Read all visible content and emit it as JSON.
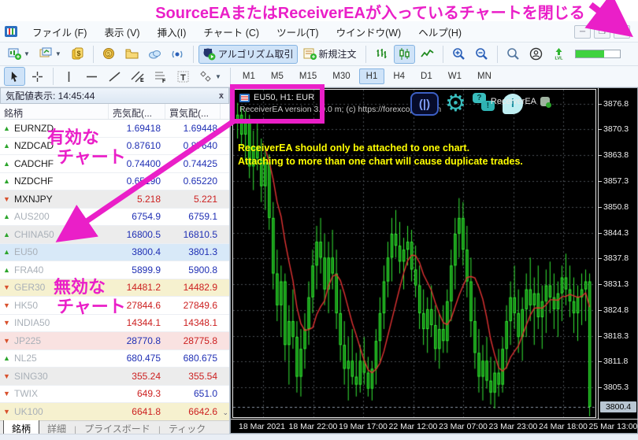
{
  "annotations": {
    "color": "#ea1fc8",
    "top_text": "SourceEAまたはReceiverEAが入っているチャートを閉じる",
    "valid_chart": [
      "有効な",
      "チャート"
    ],
    "invalid_chart": [
      "無効な",
      "チャート"
    ]
  },
  "menu": {
    "items": [
      "ファイル (F)",
      "表示 (V)",
      "挿入(I)",
      "チャート (C)",
      "ツール(T)",
      "ウインドウ(W)",
      "ヘルプ(H)"
    ],
    "window_controls": [
      "minimize",
      "restore",
      "close"
    ]
  },
  "toolbar1": {
    "items": [
      {
        "name": "new-chart-button",
        "icon": "new-chart",
        "dropdown": true
      },
      {
        "name": "profiles-button",
        "icon": "profiles",
        "dropdown": true
      },
      {
        "name": "market-watch-toggle",
        "icon": "dollar"
      },
      {
        "type": "sep"
      },
      {
        "name": "history-center-button",
        "icon": "coins"
      },
      {
        "name": "data-folder-button",
        "icon": "folder"
      },
      {
        "name": "cloud-button",
        "icon": "cloud"
      },
      {
        "name": "signals-button",
        "icon": "signal"
      },
      {
        "type": "sep"
      },
      {
        "name": "algo-trading-button",
        "icon": "algo",
        "label": "アルゴリズム取引",
        "active": true
      },
      {
        "name": "new-order-button",
        "icon": "order",
        "label": "新規注文"
      },
      {
        "type": "sep"
      },
      {
        "name": "bar-chart-type-button",
        "icon": "bars"
      },
      {
        "name": "candle-chart-type-button",
        "icon": "candles",
        "active": true
      },
      {
        "name": "line-chart-type-button",
        "icon": "linechart"
      },
      {
        "type": "sep"
      },
      {
        "name": "zoom-in-button",
        "icon": "zoom-in"
      },
      {
        "name": "zoom-out-button",
        "icon": "zoom-out"
      },
      {
        "type": "sep"
      },
      {
        "name": "search-button",
        "icon": "search"
      },
      {
        "name": "account-button",
        "icon": "user"
      },
      {
        "name": "levels-button",
        "icon": "lvl"
      },
      {
        "name": "connection-progress",
        "type": "progress",
        "value": 65
      }
    ]
  },
  "toolbar2": {
    "items": [
      {
        "name": "cursor-tool",
        "icon": "cursor",
        "active": true
      },
      {
        "name": "crosshair-tool",
        "icon": "crosshair"
      },
      {
        "type": "sep"
      },
      {
        "name": "vline-tool",
        "icon": "vline"
      },
      {
        "name": "hline-tool",
        "icon": "hline"
      },
      {
        "name": "trendline-tool",
        "icon": "trend"
      },
      {
        "name": "channel-tool",
        "icon": "channel"
      },
      {
        "name": "fibo-tool",
        "icon": "fibo"
      },
      {
        "name": "text-tool",
        "icon": "text"
      },
      {
        "name": "shapes-tool",
        "icon": "shapes",
        "dropdown": true
      }
    ],
    "timeframes": [
      "M1",
      "M5",
      "M15",
      "M30",
      "H1",
      "H4",
      "D1",
      "W1",
      "MN"
    ],
    "active_timeframe": "H1"
  },
  "market_watch": {
    "title": "気配値表示: 14:45:44",
    "columns": [
      "銘柄",
      "売気配(...",
      "買気配(..."
    ],
    "rows": [
      {
        "symbol": "EURNZD",
        "dir": "up",
        "bid": "1.69418",
        "ask": "1.69448",
        "bg": "white",
        "bidc": "blue",
        "askc": "blue",
        "muted": false
      },
      {
        "symbol": "NZDCAD",
        "dir": "up",
        "bid": "0.87610",
        "ask": "0.87640",
        "bg": "white",
        "bidc": "blue",
        "askc": "blue",
        "muted": false
      },
      {
        "symbol": "CADCHF",
        "dir": "up",
        "bid": "0.74400",
        "ask": "0.74425",
        "bg": "white",
        "bidc": "blue",
        "askc": "blue",
        "muted": false
      },
      {
        "symbol": "NZDCHF",
        "dir": "up",
        "bid": "0.65190",
        "ask": "0.65220",
        "bg": "white",
        "bidc": "blue",
        "askc": "blue",
        "muted": false
      },
      {
        "symbol": "MXNJPY",
        "dir": "down",
        "bid": "5.218",
        "ask": "5.221",
        "bg": "grey",
        "bidc": "red",
        "askc": "red",
        "muted": false
      },
      {
        "symbol": "AUS200",
        "dir": "up",
        "bid": "6754.9",
        "ask": "6759.1",
        "bg": "white",
        "bidc": "blue",
        "askc": "blue",
        "muted": true
      },
      {
        "symbol": "CHINA50",
        "dir": "up",
        "bid": "16800.5",
        "ask": "16810.5",
        "bg": "grey",
        "bidc": "blue",
        "askc": "blue",
        "muted": true
      },
      {
        "symbol": "EU50",
        "dir": "up",
        "bid": "3800.4",
        "ask": "3801.3",
        "bg": "blue",
        "bidc": "blue",
        "askc": "blue",
        "muted": true
      },
      {
        "symbol": "FRA40",
        "dir": "up",
        "bid": "5899.9",
        "ask": "5900.8",
        "bg": "white",
        "bidc": "blue",
        "askc": "blue",
        "muted": true
      },
      {
        "symbol": "GER30",
        "dir": "down",
        "bid": "14481.2",
        "ask": "14482.9",
        "bg": "yellow",
        "bidc": "red",
        "askc": "red",
        "muted": true
      },
      {
        "symbol": "HK50",
        "dir": "down",
        "bid": "27844.6",
        "ask": "27849.6",
        "bg": "white",
        "bidc": "red",
        "askc": "red",
        "muted": true
      },
      {
        "symbol": "INDIA50",
        "dir": "down",
        "bid": "14344.1",
        "ask": "14348.1",
        "bg": "white",
        "bidc": "red",
        "askc": "red",
        "muted": true
      },
      {
        "symbol": "JP225",
        "dir": "down",
        "bid": "28770.8",
        "ask": "28775.8",
        "bg": "pink",
        "bidc": "blue",
        "askc": "red",
        "muted": true
      },
      {
        "symbol": "NL25",
        "dir": "up",
        "bid": "680.475",
        "ask": "680.675",
        "bg": "white",
        "bidc": "blue",
        "askc": "blue",
        "muted": true
      },
      {
        "symbol": "SING30",
        "dir": "down",
        "bid": "355.24",
        "ask": "355.54",
        "bg": "grey",
        "bidc": "red",
        "askc": "red",
        "muted": true
      },
      {
        "symbol": "TWIX",
        "dir": "down",
        "bid": "649.3",
        "ask": "651.0",
        "bg": "white",
        "bidc": "red",
        "askc": "blue",
        "muted": true
      },
      {
        "symbol": "UK100",
        "dir": "down",
        "bid": "6641.8",
        "ask": "6642.6",
        "bg": "yellow",
        "bidc": "red",
        "askc": "red",
        "muted": true
      }
    ],
    "tabs": [
      {
        "label": "銘柄",
        "active": true
      },
      {
        "label": "詳細",
        "active": false
      },
      {
        "label": "プライスボード",
        "active": false
      },
      {
        "label": "ティック",
        "active": false
      }
    ]
  },
  "chart": {
    "title_line": "EU50, H1: EUR",
    "version_line": "ReceiverEA version 3.0.0 m; (c) https://forexcopier.com",
    "ea_name": "ReceiverEA",
    "warning_line1": "ReceiverEA should only be attached to one chart.",
    "warning_line2": "Attaching to more than one chart will cause duplicate trades."
  },
  "chart_data": {
    "type": "candlestick",
    "symbol": "EU50",
    "timeframe": "H1",
    "ylim": [
      3797.8,
      3880.3
    ],
    "current_price": 3800.4,
    "current_price_label": "3800.4",
    "price_ticks": [
      3876.8,
      3870.3,
      3863.8,
      3857.3,
      3850.8,
      3844.3,
      3837.8,
      3831.3,
      3824.8,
      3818.3,
      3811.8,
      3805.3
    ],
    "x_labels": [
      "18 Mar 2021",
      "18 Mar 22:00",
      "19 Mar 17:00",
      "22 Mar 12:00",
      "23 Mar 07:00",
      "23 Mar 23:00",
      "24 Mar 18:00",
      "25 Mar 13:00"
    ],
    "grid": true,
    "ma_period": 8,
    "colors": {
      "background": "#000000",
      "candle": "#35e835",
      "candle_fill": "#0e7a0e",
      "ma": "#e23333",
      "grid": "#4a4f55",
      "current_line": "#8a97a4"
    },
    "candles": [
      [
        3872,
        3877,
        3868,
        3874
      ],
      [
        3874,
        3876,
        3866,
        3869
      ],
      [
        3869,
        3875,
        3862,
        3872
      ],
      [
        3872,
        3874,
        3858,
        3861
      ],
      [
        3861,
        3870,
        3855,
        3866
      ],
      [
        3866,
        3872,
        3860,
        3863
      ],
      [
        3863,
        3868,
        3852,
        3856
      ],
      [
        3856,
        3866,
        3850,
        3862
      ],
      [
        3862,
        3864,
        3845,
        3848
      ],
      [
        3848,
        3852,
        3830,
        3834
      ],
      [
        3834,
        3840,
        3822,
        3826
      ],
      [
        3826,
        3836,
        3818,
        3832
      ],
      [
        3832,
        3834,
        3812,
        3816
      ],
      [
        3816,
        3826,
        3806,
        3822
      ],
      [
        3822,
        3830,
        3815,
        3818
      ],
      [
        3818,
        3822,
        3804,
        3808
      ],
      [
        3808,
        3820,
        3803,
        3815
      ],
      [
        3815,
        3824,
        3810,
        3820
      ],
      [
        3820,
        3832,
        3816,
        3828
      ],
      [
        3828,
        3840,
        3824,
        3836
      ],
      [
        3836,
        3846,
        3830,
        3842
      ],
      [
        3842,
        3848,
        3834,
        3838
      ],
      [
        3838,
        3844,
        3826,
        3830
      ],
      [
        3830,
        3842,
        3824,
        3838
      ],
      [
        3838,
        3845,
        3830,
        3834
      ],
      [
        3834,
        3840,
        3820,
        3824
      ],
      [
        3824,
        3830,
        3812,
        3816
      ],
      [
        3816,
        3822,
        3806,
        3810
      ],
      [
        3810,
        3818,
        3802,
        3812
      ],
      [
        3812,
        3820,
        3806,
        3808
      ],
      [
        3808,
        3814,
        3803,
        3806
      ],
      [
        3806,
        3816,
        3804,
        3812
      ],
      [
        3812,
        3818,
        3806,
        3809
      ],
      [
        3809,
        3813,
        3803,
        3805
      ],
      [
        3805,
        3812,
        3802,
        3810
      ],
      [
        3810,
        3820,
        3806,
        3817
      ],
      [
        3817,
        3828,
        3812,
        3824
      ],
      [
        3824,
        3836,
        3820,
        3832
      ],
      [
        3832,
        3842,
        3828,
        3838
      ],
      [
        3838,
        3848,
        3832,
        3844
      ],
      [
        3844,
        3850,
        3838,
        3841
      ],
      [
        3841,
        3847,
        3834,
        3837
      ],
      [
        3837,
        3843,
        3830,
        3840
      ],
      [
        3840,
        3846,
        3836,
        3842
      ],
      [
        3842,
        3845,
        3832,
        3835
      ],
      [
        3835,
        3841,
        3828,
        3831
      ],
      [
        3831,
        3836,
        3820,
        3824
      ],
      [
        3824,
        3830,
        3816,
        3820
      ],
      [
        3820,
        3828,
        3814,
        3825
      ],
      [
        3825,
        3831,
        3818,
        3821
      ],
      [
        3821,
        3826,
        3812,
        3815
      ],
      [
        3815,
        3824,
        3810,
        3820
      ],
      [
        3820,
        3826,
        3814,
        3817
      ],
      [
        3817,
        3830,
        3814,
        3827
      ],
      [
        3827,
        3840,
        3822,
        3836
      ],
      [
        3836,
        3848,
        3830,
        3844
      ],
      [
        3844,
        3853,
        3838,
        3848
      ],
      [
        3848,
        3852,
        3836,
        3840
      ],
      [
        3840,
        3846,
        3828,
        3832
      ],
      [
        3832,
        3838,
        3818,
        3822
      ],
      [
        3822,
        3828,
        3810,
        3814
      ],
      [
        3814,
        3820,
        3804,
        3808
      ],
      [
        3808,
        3816,
        3802,
        3812
      ],
      [
        3812,
        3818,
        3805,
        3807
      ],
      [
        3807,
        3813,
        3801,
        3804
      ],
      [
        3804,
        3812,
        3800,
        3809
      ],
      [
        3809,
        3815,
        3803,
        3806
      ],
      [
        3806,
        3818,
        3804,
        3815
      ],
      [
        3815,
        3826,
        3810,
        3822
      ],
      [
        3822,
        3832,
        3816,
        3828
      ],
      [
        3828,
        3836,
        3820,
        3824
      ],
      [
        3824,
        3830,
        3814,
        3818
      ],
      [
        3818,
        3828,
        3812,
        3825
      ],
      [
        3825,
        3834,
        3818,
        3830
      ],
      [
        3830,
        3838,
        3822,
        3826
      ],
      [
        3826,
        3833,
        3816,
        3829
      ],
      [
        3829,
        3836,
        3820,
        3823
      ],
      [
        3823,
        3831,
        3815,
        3827
      ],
      [
        3827,
        3835,
        3819,
        3831
      ],
      [
        3831,
        3837,
        3824,
        3828
      ],
      [
        3828,
        3834,
        3820,
        3825
      ],
      [
        3825,
        3832,
        3818,
        3829
      ],
      [
        3829,
        3836,
        3822,
        3833
      ],
      [
        3833,
        3839,
        3826,
        3830
      ],
      [
        3830,
        3836,
        3823,
        3827
      ],
      [
        3827,
        3833,
        3819,
        3824
      ],
      [
        3824,
        3831,
        3817,
        3828
      ],
      [
        3828,
        3834,
        3821,
        3830
      ],
      [
        3830,
        3835,
        3822,
        3832
      ],
      [
        3832,
        3834,
        3798,
        3800.4
      ]
    ]
  }
}
